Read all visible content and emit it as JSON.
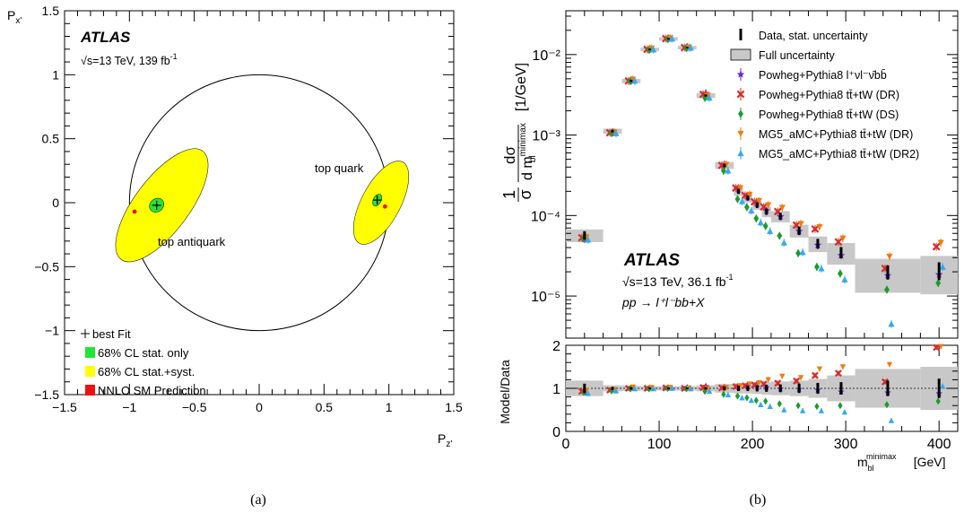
{
  "panel_a": {
    "caption": "(a)",
    "atlas": "ATLAS",
    "energy_label": "√s=13 TeV, 139 fb",
    "energy_sup": "-1",
    "xlabel": "P",
    "xlabel_sub": "z'",
    "ylabel": "P",
    "ylabel_sub": "x'",
    "top_quark_label": "top quark",
    "top_antiquark_label": "top antiquark",
    "legend": [
      {
        "label": "best Fit",
        "marker": "plus",
        "color": "#000000"
      },
      {
        "label": "68% CL stat. only",
        "marker": "box",
        "color": "#22e636"
      },
      {
        "label": "68% CL stat.+syst.",
        "marker": "box",
        "color": "#ffff00"
      },
      {
        "label": "NNLO SM Prediction",
        "marker": "box",
        "color": "#ee1111"
      }
    ]
  },
  "panel_b": {
    "caption": "(b)",
    "atlas": "ATLAS",
    "energy_label": "√s=13 TeV, 36.1 fb",
    "energy_sup": "-1",
    "process_label": "pp → l⁺l⁻bb+X",
    "ratio_ylabel": "Model/Data",
    "xlabel": "m",
    "xlabel_sup": "minimax",
    "xlabel_sub": "bl",
    "xlabel_unit": "[GeV]",
    "ylabel_frac_num": "1",
    "ylabel_frac_den": "σ",
    "ylabel_dnum": "dσ",
    "ylabel_dden": "d m",
    "ylabel_dden_sup": "minimax",
    "ylabel_dden_sub": "bl",
    "ylabel_unit": "[1/GeV]",
    "legend": [
      {
        "label": "Data, stat. uncertainty",
        "marker": "bar",
        "color": "#000000"
      },
      {
        "label": "Full uncertainty",
        "marker": "greybox",
        "color": "#c8c8c8"
      },
      {
        "label": "Powheg+Pythia8 l⁺νl⁻ν̄bb̄",
        "marker": "star",
        "color": "#6a2bd6"
      },
      {
        "label": "Powheg+Pythia8 tt̄+tW (DR)",
        "marker": "cross",
        "color": "#d62b2b"
      },
      {
        "label": "Powheg+Pythia8 tt̄+tW (DS)",
        "marker": "diamond",
        "color": "#1e9a2a"
      },
      {
        "label": "MG5_aMC+Pythia8 tt̄+tW (DR)",
        "marker": "tridown",
        "color": "#ef7a10"
      },
      {
        "label": "MG5_aMC+Pythia8 tt̄+tW (DR2)",
        "marker": "triup",
        "color": "#34a9ef"
      }
    ]
  },
  "chart_data": [
    {
      "type": "scatter",
      "title": "",
      "xlabel": "P_z'",
      "ylabel": "P_x'",
      "xlim": [
        -1.5,
        1.5
      ],
      "ylim": [
        -1.5,
        1.5
      ],
      "xticks": [
        "−1.5",
        "−1",
        "−0.5",
        "0",
        "0.5",
        "1",
        "1.5"
      ],
      "yticks": [
        "−1.5",
        "−1",
        "−0.5",
        "0",
        "0.5",
        "1",
        "1.5"
      ],
      "unit_circle_radius": 1.0,
      "best_fit": [
        {
          "name": "top quark",
          "x": 0.91,
          "y": 0.02
        },
        {
          "name": "top antiquark",
          "x": -0.79,
          "y": -0.02
        }
      ],
      "nnlo_prediction": [
        {
          "name": "top quark",
          "x": 0.97,
          "y": -0.03
        },
        {
          "name": "top antiquark",
          "x": -0.96,
          "y": -0.07
        }
      ],
      "contours_68cl_stat_syst": [
        {
          "name": "top quark",
          "center": [
            0.94,
            0.0
          ],
          "semi_axes": [
            0.15,
            0.36
          ],
          "tilt_deg": 28
        },
        {
          "name": "top antiquark",
          "center": [
            -0.75,
            -0.02
          ],
          "semi_axes": [
            0.21,
            0.53
          ],
          "tilt_deg": 37
        }
      ],
      "contours_68cl_stat_only": [
        {
          "name": "top quark",
          "center": [
            0.91,
            0.02
          ],
          "semi_axes": [
            0.03,
            0.05
          ],
          "tilt_deg": 28
        },
        {
          "name": "top antiquark",
          "center": [
            -0.79,
            -0.02
          ],
          "semi_axes": [
            0.05,
            0.06
          ],
          "tilt_deg": 50
        }
      ],
      "legend_placement": "bottom-left",
      "grid": false
    },
    {
      "type": "scatter",
      "title": "",
      "xlabel": "m_bl^minimax [GeV]",
      "ylabel": "1/σ dσ/d m_bl^minimax [1/GeV]",
      "y_scale": "log",
      "xlim": [
        0,
        420
      ],
      "ylim": [
        3e-06,
        0.035
      ],
      "xticks": [
        "0",
        "100",
        "200",
        "300",
        "400"
      ],
      "yticks": [
        "10⁻⁵",
        "10⁻⁴",
        "10⁻³",
        "10⁻²"
      ],
      "ratio_ylim": [
        0,
        2
      ],
      "ratio_yticks": [
        "0",
        "1",
        "2"
      ],
      "bins": [
        [
          0,
          40
        ],
        [
          40,
          60
        ],
        [
          60,
          80
        ],
        [
          80,
          100
        ],
        [
          100,
          120
        ],
        [
          120,
          140
        ],
        [
          140,
          160
        ],
        [
          160,
          180
        ],
        [
          180,
          190
        ],
        [
          190,
          200
        ],
        [
          200,
          210
        ],
        [
          210,
          220
        ],
        [
          220,
          240
        ],
        [
          240,
          260
        ],
        [
          260,
          280
        ],
        [
          280,
          310
        ],
        [
          310,
          380
        ],
        [
          380,
          420
        ]
      ],
      "series": [
        {
          "name": "Data, stat. uncertainty",
          "values": [
            5.7e-05,
            0.00112,
            0.0047,
            0.0116,
            0.0157,
            0.0122,
            0.0031,
            0.00042,
            0.0002,
            0.000165,
            0.000135,
            0.000112,
            9.8e-05,
            6.5e-05,
            4.5e-05,
            3.5e-05,
            2e-05,
            2.1e-05
          ],
          "stat_err_rel": [
            0.12,
            0.04,
            0.03,
            0.02,
            0.02,
            0.02,
            0.03,
            0.05,
            0.07,
            0.07,
            0.08,
            0.09,
            0.1,
            0.12,
            0.14,
            0.16,
            0.2,
            0.25
          ],
          "full_unc_rel": [
            0.18,
            0.07,
            0.06,
            0.05,
            0.05,
            0.05,
            0.07,
            0.1,
            0.12,
            0.12,
            0.13,
            0.15,
            0.16,
            0.18,
            0.22,
            0.3,
            0.45,
            0.5
          ],
          "ratio": [
            1,
            1,
            1,
            1,
            1,
            1,
            1,
            1,
            1,
            1,
            1,
            1,
            1,
            1,
            1,
            1,
            1,
            1
          ]
        },
        {
          "name": "Powheg+Pythia8 l⁺νl⁻ν̄bb̄",
          "values": [
            5.1e-05,
            0.00108,
            0.0048,
            0.0117,
            0.0158,
            0.0124,
            0.0033,
            0.00043,
            0.00021,
            0.000172,
            0.00014,
            0.000115,
            9.7e-05,
            6.4e-05,
            4.3e-05,
            3.2e-05,
            1.8e-05,
            1.85e-05
          ],
          "ratio": [
            0.9,
            0.96,
            1.01,
            1.01,
            1.01,
            1.02,
            1.05,
            1.03,
            1.02,
            1.04,
            1.03,
            1.02,
            0.99,
            0.98,
            0.96,
            0.92,
            0.9,
            0.88
          ]
        },
        {
          "name": "Powheg+Pythia8 tt̄+tW (DR)",
          "values": [
            5.3e-05,
            0.00107,
            0.0047,
            0.0116,
            0.0158,
            0.0122,
            0.0032,
            0.00042,
            0.00022,
            0.000178,
            0.000148,
            0.000128,
            0.000112,
            7.6e-05,
            6.8e-05,
            4.7e-05,
            2.2e-05,
            4.1e-05
          ],
          "ratio": [
            0.93,
            0.96,
            1,
            1,
            1.01,
            1,
            1.02,
            1.01,
            1.04,
            1.06,
            1.08,
            1.1,
            1.12,
            1.17,
            1.3,
            1.35,
            1.15,
            1.95
          ]
        },
        {
          "name": "Powheg+Pythia8 tt̄+tW (DS)",
          "values": [
            5.2e-05,
            0.00106,
            0.0047,
            0.0115,
            0.0157,
            0.0121,
            0.0029,
            0.00036,
            0.00016,
            0.000127,
            9.2e-05,
            7.4e-05,
            5.6e-05,
            3.4e-05,
            2.3e-05,
            1.9e-05,
            1.2e-05,
            1.45e-05
          ],
          "ratio": [
            0.91,
            0.94,
            0.99,
            0.99,
            1,
            0.99,
            0.93,
            0.86,
            0.82,
            0.78,
            0.72,
            0.7,
            0.64,
            0.6,
            0.58,
            0.6,
            0.62,
            0.7
          ]
        },
        {
          "name": "MG5_aMC+Pythia8 tt̄+tW (DR)",
          "values": [
            5.4e-05,
            0.00109,
            0.0049,
            0.0119,
            0.016,
            0.0123,
            0.0031,
            0.00043,
            0.00022,
            0.000182,
            0.000152,
            0.000135,
            0.000125,
            7.9e-05,
            7.2e-05,
            5.2e-05,
            3.1e-05,
            4.6e-05
          ],
          "ratio": [
            0.95,
            0.97,
            1.03,
            1.02,
            1.02,
            1.01,
            1,
            1.02,
            1.06,
            1.1,
            1.13,
            1.2,
            1.28,
            1.25,
            1.45,
            1.5,
            1.55,
            2.0
          ]
        },
        {
          "name": "MG5_aMC+Pythia8 tt̄+tW (DR2)",
          "values": [
            5e-05,
            0.00105,
            0.0047,
            0.0115,
            0.0157,
            0.0121,
            0.0029,
            0.00036,
            0.00015,
            0.000115,
            8.2e-05,
            6.4e-05,
            4.6e-05,
            3.5e-05,
            2.2e-05,
            1.6e-05,
            4.5e-06,
            2.3e-05
          ],
          "ratio": [
            0.88,
            0.94,
            0.99,
            0.99,
            1,
            0.99,
            0.93,
            0.85,
            0.78,
            0.72,
            0.62,
            0.58,
            0.5,
            0.48,
            0.48,
            0.45,
            0.25,
            1.05
          ]
        }
      ],
      "legend_placement": "top-right",
      "grid": false
    }
  ]
}
